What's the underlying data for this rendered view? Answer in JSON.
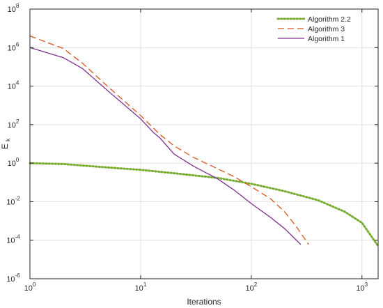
{
  "chart_data": {
    "type": "line",
    "x_scale": "log",
    "y_scale": "log",
    "xlabel": "Iterations",
    "ylabel": "E",
    "ylabel_subscript": "k",
    "xlim": [
      1,
      1400
    ],
    "ylim": [
      1e-06,
      100000000.0
    ],
    "grid": true,
    "legend_position": "top-right",
    "x_ticks": [
      {
        "value": 1,
        "base": "10",
        "exp": "0"
      },
      {
        "value": 10,
        "base": "10",
        "exp": "1"
      },
      {
        "value": 100,
        "base": "10",
        "exp": "2"
      },
      {
        "value": 1000,
        "base": "10",
        "exp": "3"
      }
    ],
    "y_ticks": [
      {
        "value": 1e-06,
        "base": "10",
        "exp": "-6"
      },
      {
        "value": 0.0001,
        "base": "10",
        "exp": "-4"
      },
      {
        "value": 0.01,
        "base": "10",
        "exp": "-2"
      },
      {
        "value": 1,
        "base": "10",
        "exp": "0"
      },
      {
        "value": 100,
        "base": "10",
        "exp": "2"
      },
      {
        "value": 10000,
        "base": "10",
        "exp": "4"
      },
      {
        "value": 1000000,
        "base": "10",
        "exp": "6"
      },
      {
        "value": 100000000,
        "base": "10",
        "exp": "8"
      }
    ],
    "series": [
      {
        "name": "Algorithm 2.2",
        "color": "#77AC30",
        "style": "dotted",
        "points": [
          [
            1,
            1.0
          ],
          [
            2,
            0.9
          ],
          [
            5,
            0.6
          ],
          [
            10,
            0.45
          ],
          [
            20,
            0.3
          ],
          [
            50,
            0.17
          ],
          [
            100,
            0.085
          ],
          [
            200,
            0.035
          ],
          [
            400,
            0.012
          ],
          [
            700,
            0.003
          ],
          [
            1000,
            0.0008
          ],
          [
            1400,
            5e-05
          ]
        ]
      },
      {
        "name": "Algorithm 3",
        "color": "#D95319",
        "style": "dashed",
        "points": [
          [
            1,
            4000000.0
          ],
          [
            2,
            900000.0
          ],
          [
            3,
            150000.0
          ],
          [
            5,
            10000.0
          ],
          [
            10,
            300.0
          ],
          [
            15,
            30
          ],
          [
            20,
            8
          ],
          [
            30,
            2.0
          ],
          [
            50,
            0.5
          ],
          [
            70,
            0.2
          ],
          [
            100,
            0.06
          ],
          [
            150,
            0.014
          ],
          [
            200,
            0.003
          ],
          [
            250,
            0.0006
          ],
          [
            330,
            6e-05
          ]
        ]
      },
      {
        "name": "Algorithm 1",
        "color": "#7E2F8E",
        "style": "solid",
        "points": [
          [
            1,
            1000000.0
          ],
          [
            2,
            300000.0
          ],
          [
            3,
            80000.0
          ],
          [
            5,
            6000.0
          ],
          [
            10,
            200.0
          ],
          [
            13,
            40
          ],
          [
            15,
            20
          ],
          [
            20,
            3
          ],
          [
            30,
            0.7
          ],
          [
            50,
            0.15
          ],
          [
            70,
            0.04
          ],
          [
            100,
            0.008
          ],
          [
            150,
            0.0015
          ],
          [
            200,
            0.0004
          ],
          [
            280,
            6e-05
          ]
        ]
      }
    ]
  }
}
